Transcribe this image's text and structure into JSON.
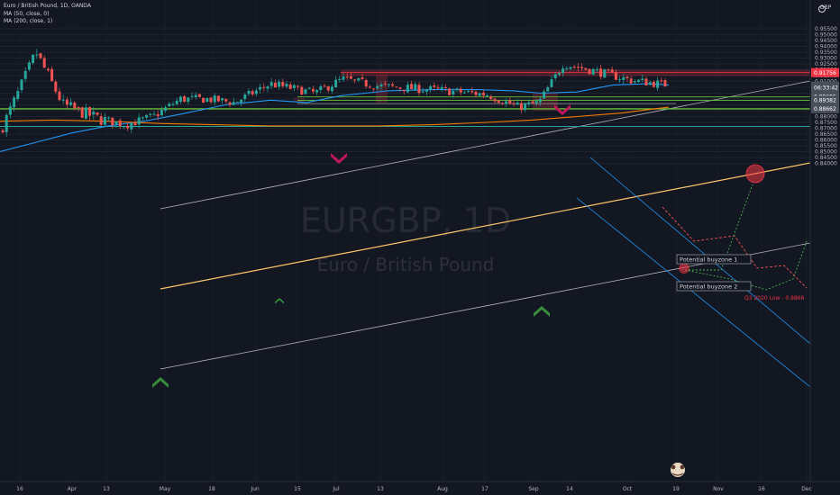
{
  "legend": {
    "symbol_title": "Euro / British Pound, 1D, OANDA",
    "ma50": "MA (50, close, 0)",
    "ma200": "MA (200, close, 1)"
  },
  "watermark": {
    "ticker": "EURGBP, 1D",
    "name": "Euro / British Pound"
  },
  "currency": "GBP",
  "price_scale": {
    "ticks": [
      "0.95500",
      "0.95000",
      "0.94500",
      "0.94000",
      "0.93500",
      "0.93000",
      "0.92500",
      "0.92000",
      "0.91500",
      "0.91000",
      "0.90500",
      "0.90000",
      "0.89500",
      "0.89000",
      "0.88500",
      "0.88000",
      "0.87500",
      "0.87000",
      "0.86500",
      "0.86000",
      "0.85500",
      "0.85000",
      "0.84500",
      "0.84000"
    ],
    "tick_values": [
      0.955,
      0.95,
      0.945,
      0.94,
      0.935,
      0.93,
      0.925,
      0.92,
      0.915,
      0.91,
      0.905,
      0.9,
      0.895,
      0.89,
      0.885,
      0.88,
      0.875,
      0.87,
      0.865,
      0.86,
      0.855,
      0.85,
      0.845,
      0.84
    ]
  },
  "price_labels": [
    {
      "text": "0.91756",
      "value": 0.91756,
      "color": "#f23645"
    },
    {
      "text": "0.90605",
      "value": 0.90605,
      "color": "#4a4f5c"
    },
    {
      "text": "06:33:42",
      "value": 0.9047,
      "color": "#4a4f5c"
    },
    {
      "text": "0.89695",
      "value": 0.89695,
      "color": "#4a4f5c"
    },
    {
      "text": "0.89382",
      "value": 0.89382,
      "color": "#4a4f5c"
    },
    {
      "text": "0.88662",
      "value": 0.88662,
      "color": "#4a4f5c"
    }
  ],
  "time_axis": [
    "16",
    "Apr",
    "13",
    "May",
    "18",
    "Jun",
    "15",
    "Jul",
    "13",
    "Aug",
    "17",
    "Sep",
    "14",
    "Oct",
    "19",
    "Nov",
    "16",
    "Dec"
  ],
  "annotations": {
    "zone1": "Potential buyzone 1",
    "zone2": "Potential buyzone 2",
    "q3_low": "Q3 2020 Low - 0.8866"
  },
  "colors": {
    "background": "#131722",
    "up": "#26a69a",
    "down": "#ef5350",
    "ma50": "#2196f3",
    "ma200": "#f57c00",
    "support_green": "#6abf3a",
    "resistance_red": "#f23645",
    "channel": "#b2b5be",
    "trend_orange": "#ffc56b"
  },
  "chart_data": {
    "type": "candlestick",
    "symbol": "Euro / British Pound",
    "interval": "1D",
    "ylim": [
      0.8375,
      0.96
    ],
    "horizontal_levels": [
      0.91756,
      0.89695,
      0.89382,
      0.88662,
      0.8715
    ],
    "ohlc_anchors_close": [
      0.867,
      0.9,
      0.935,
      0.89,
      0.878,
      0.873,
      0.88,
      0.895,
      0.895,
      0.892,
      0.908,
      0.9,
      0.912,
      0.906,
      0.903,
      0.899,
      0.888,
      0.892,
      0.925,
      0.919,
      0.911,
      0.907
    ],
    "ma50_anchor_values": [
      0.85,
      0.858,
      0.866,
      0.872,
      0.876,
      0.882,
      0.89,
      0.894,
      0.892,
      0.898,
      0.902,
      0.903,
      0.903,
      0.902,
      0.9,
      0.901,
      0.907,
      0.908,
      0.907
    ],
    "ma200_anchor_values": [
      0.876,
      0.877,
      0.876,
      0.874,
      0.873,
      0.872,
      0.872,
      0.872,
      0.873,
      0.875,
      0.877,
      0.88,
      0.883,
      0.886,
      0.888
    ]
  }
}
